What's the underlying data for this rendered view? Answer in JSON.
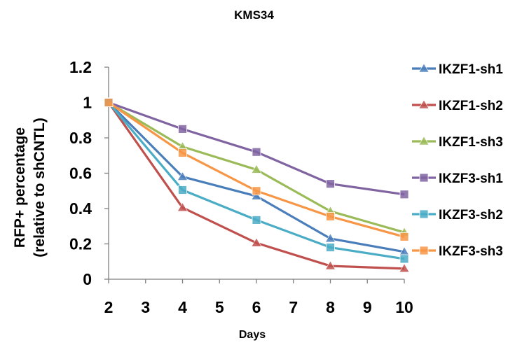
{
  "chart_data": {
    "type": "line",
    "title": "KMS34",
    "xlabel": "Days",
    "ylabel_line1": "RFP+ percentage",
    "ylabel_line2": "(relative to shCNTL)",
    "x": [
      2,
      4,
      6,
      8,
      10
    ],
    "xticks": [
      "2",
      "3",
      "4",
      "5",
      "6",
      "7",
      "8",
      "9",
      "10"
    ],
    "xlim": [
      2,
      10
    ],
    "yticks": [
      "0",
      "0.2",
      "0.4",
      "0.6",
      "0.8",
      "1",
      "1.2"
    ],
    "ylim": [
      0,
      1.2
    ],
    "grid": false,
    "legend_position": "right",
    "series": [
      {
        "name": "IKZF1-sh1",
        "color": "#4a7ebb",
        "marker": "triangle",
        "values": [
          1.0,
          0.58,
          0.47,
          0.23,
          0.155
        ]
      },
      {
        "name": "IKZF1-sh2",
        "color": "#c0504d",
        "marker": "triangle",
        "values": [
          1.0,
          0.405,
          0.205,
          0.075,
          0.06
        ]
      },
      {
        "name": "IKZF1-sh3",
        "color": "#9bbb59",
        "marker": "triangle",
        "values": [
          1.0,
          0.75,
          0.62,
          0.385,
          0.265
        ]
      },
      {
        "name": "IKZF3-sh1",
        "color": "#8064a2",
        "marker": "square",
        "values": [
          1.0,
          0.85,
          0.72,
          0.54,
          0.48
        ]
      },
      {
        "name": "IKZF3-sh2",
        "color": "#4bacc6",
        "marker": "square",
        "values": [
          1.0,
          0.505,
          0.335,
          0.18,
          0.115
        ]
      },
      {
        "name": "IKZF3-sh3",
        "color": "#f79646",
        "marker": "square",
        "values": [
          1.0,
          0.715,
          0.5,
          0.355,
          0.24
        ]
      }
    ]
  }
}
